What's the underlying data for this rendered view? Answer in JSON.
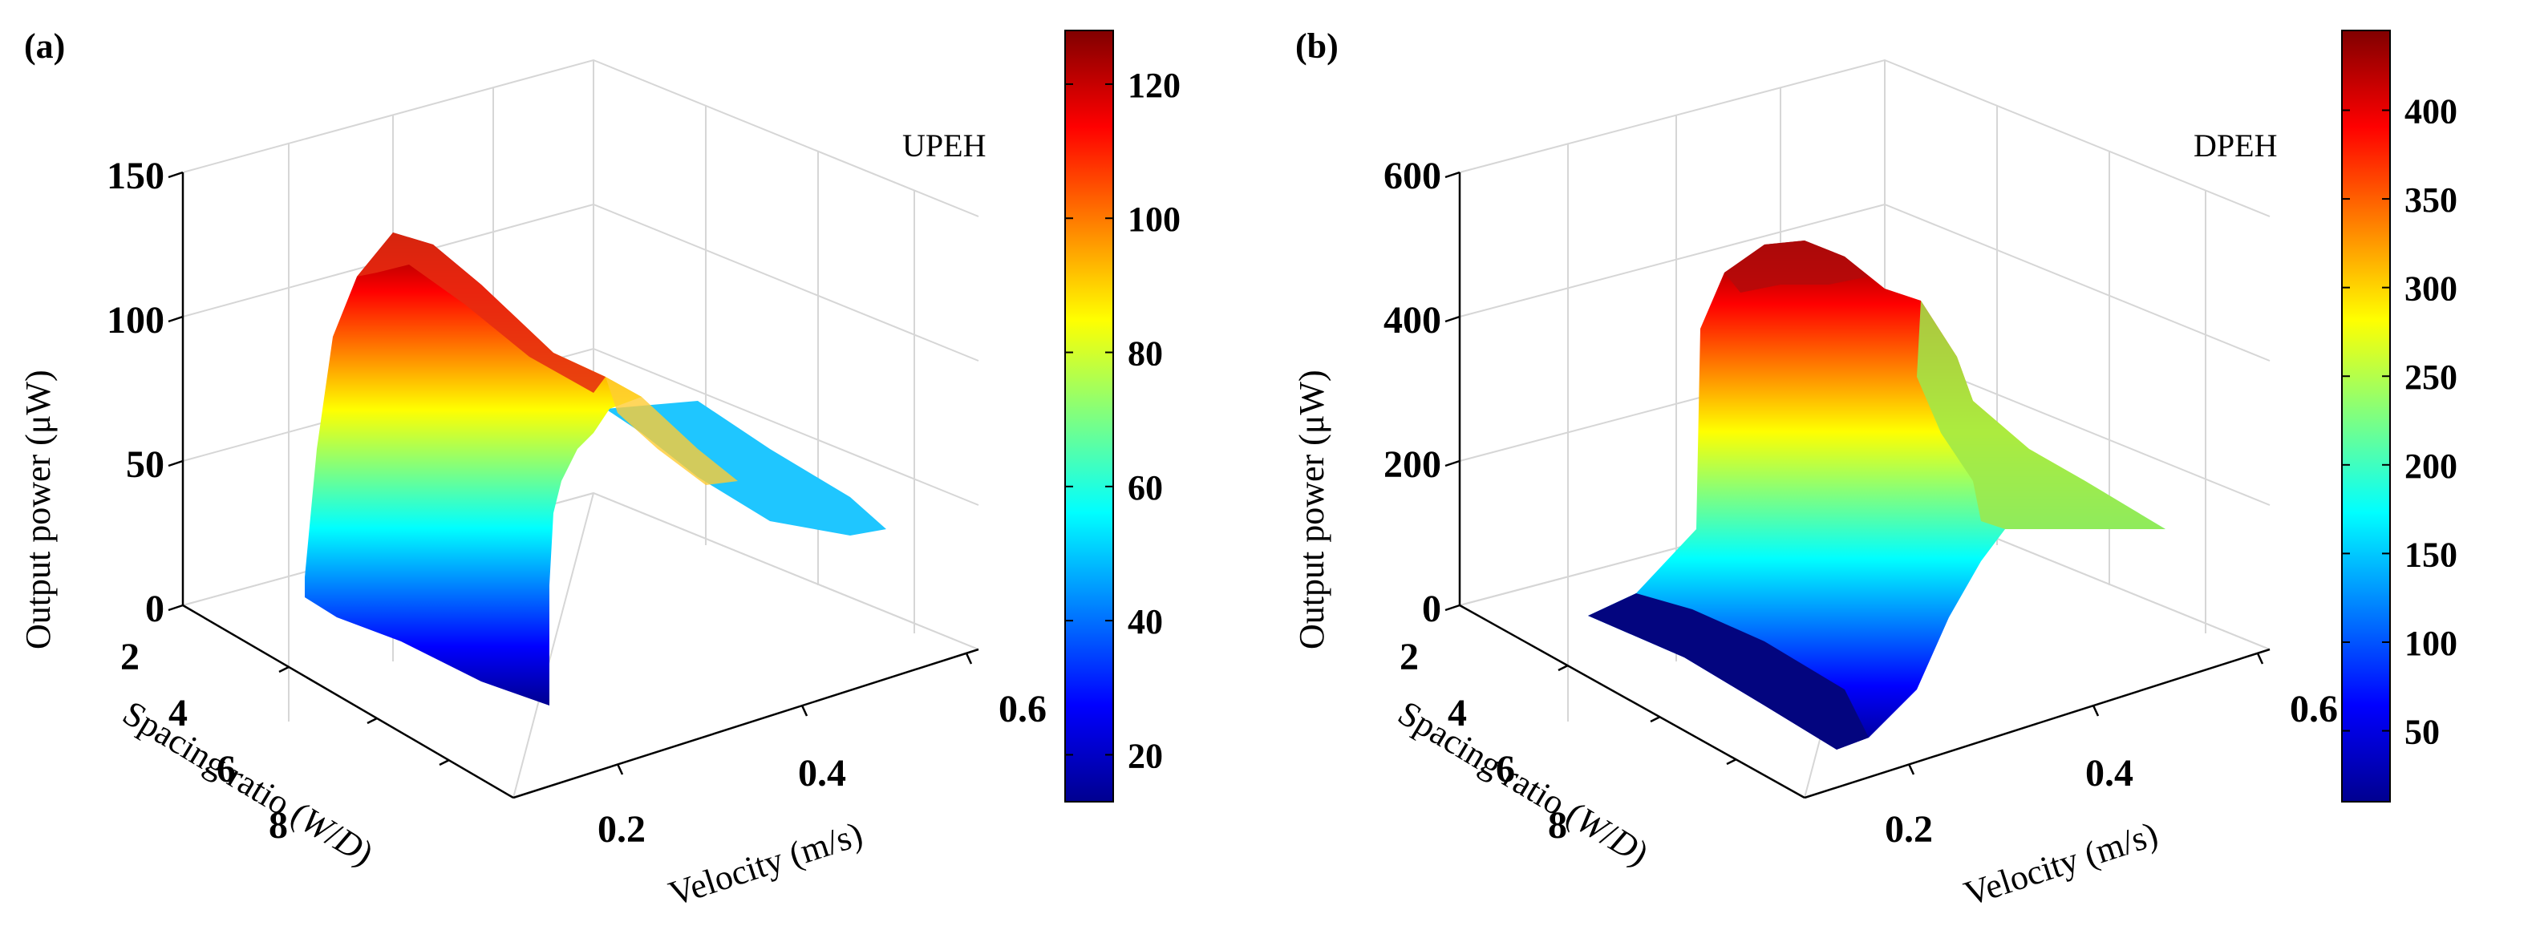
{
  "chart_data": [
    {
      "panel": "(a)",
      "type": "surface3d",
      "tag": "UPEH",
      "zlabel": "Output power (μW)",
      "xlabel": "Velocity (m/s)",
      "ylabel_parts": [
        "Spacing ratio (",
        "W",
        "/",
        "D",
        ")"
      ],
      "z_ticks": [
        "0",
        "50",
        "100",
        "150"
      ],
      "x_ticks": [
        "0.2",
        "0.4",
        "0.6"
      ],
      "y_ticks": [
        "2",
        "4",
        "6",
        "8"
      ],
      "zlim": [
        0,
        150
      ],
      "colorbar": {
        "min": 13,
        "max": 128,
        "ticks": [
          20,
          40,
          60,
          80,
          100,
          120
        ]
      },
      "edges": [
        {
          "name": "W/D=2",
          "points": [
            [
              0.12,
              2,
              10
            ],
            [
              0.155,
              2,
              95
            ],
            [
              0.175,
              2,
              112
            ],
            [
              0.2,
              2,
              128
            ],
            [
              0.24,
              2,
              117
            ],
            [
              0.3,
              2,
              97
            ],
            [
              0.36,
              2,
              74
            ],
            [
              0.4,
              2,
              63
            ],
            [
              0.45,
              2,
              49
            ],
            [
              0.5,
              2,
              38
            ],
            [
              0.54,
              2,
              29
            ],
            [
              0.57,
              2,
              29
            ]
          ]
        },
        {
          "name": "W/D=8",
          "points": [
            [
              0.12,
              8,
              13
            ],
            [
              0.14,
              8,
              50
            ],
            [
              0.16,
              8,
              85
            ],
            [
              0.19,
              8,
              108
            ],
            [
              0.23,
              8,
              113
            ],
            [
              0.27,
              8,
              103
            ],
            [
              0.32,
              8,
              77
            ],
            [
              0.38,
              8,
              54
            ],
            [
              0.45,
              8,
              42
            ],
            [
              0.5,
              8,
              31
            ],
            [
              0.55,
              8,
              26
            ],
            [
              0.57,
              8,
              26
            ]
          ]
        }
      ]
    },
    {
      "panel": "(b)",
      "type": "surface3d",
      "tag": "DPEH",
      "zlabel": "Output power (μW)",
      "xlabel": "Velocity (m/s)",
      "ylabel_parts": [
        "Spacing ratio (",
        "W",
        "/",
        "D",
        ")"
      ],
      "z_ticks": [
        "0",
        "200",
        "400",
        "600"
      ],
      "x_ticks": [
        "0.2",
        "0.4",
        "0.6"
      ],
      "y_ticks": [
        "2",
        "4",
        "6",
        "8"
      ],
      "zlim": [
        0,
        600
      ],
      "colorbar": {
        "min": 10,
        "max": 445,
        "ticks": [
          50,
          100,
          150,
          200,
          250,
          300,
          350,
          400
        ]
      },
      "edges": [
        {
          "name": "W/D=2",
          "points": [
            [
              0.12,
              2,
              5
            ],
            [
              0.15,
              2,
              175
            ],
            [
              0.17,
              2,
              380
            ],
            [
              0.2,
              2,
              440
            ],
            [
              0.22,
              2,
              445
            ],
            [
              0.26,
              2,
              415
            ],
            [
              0.3,
              2,
              370
            ],
            [
              0.35,
              2,
              330
            ],
            [
              0.4,
              2,
              290
            ],
            [
              0.45,
              2,
              260
            ],
            [
              0.5,
              2,
              225
            ],
            [
              0.55,
              2,
              195
            ],
            [
              0.57,
              2,
              190
            ]
          ]
        },
        {
          "name": "W/D=8",
          "points": [
            [
              0.12,
              8,
              10
            ],
            [
              0.16,
              8,
              12
            ],
            [
              0.2,
              8,
              15
            ],
            [
              0.24,
              8,
              60
            ],
            [
              0.28,
              8,
              140
            ],
            [
              0.32,
              8,
              180
            ],
            [
              0.36,
              8,
              230
            ],
            [
              0.42,
              8,
              235
            ],
            [
              0.48,
              8,
              205
            ],
            [
              0.53,
              8,
              195
            ],
            [
              0.57,
              8,
              190
            ]
          ]
        }
      ]
    }
  ]
}
